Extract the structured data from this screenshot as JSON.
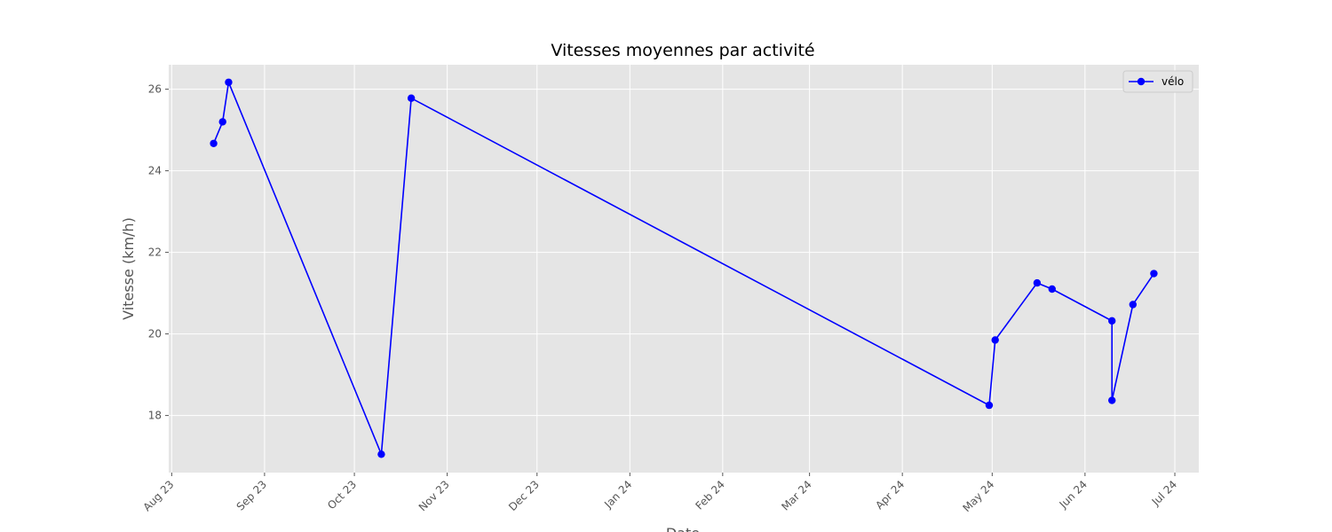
{
  "chart_data": {
    "type": "line",
    "title": "Vitesses moyennes par activité",
    "xlabel": "Date",
    "ylabel": "Vitesse (km/h)",
    "x": [
      "2023-08-15",
      "2023-08-18",
      "2023-08-20",
      "2023-10-10",
      "2023-10-20",
      "2024-04-30",
      "2024-05-02",
      "2024-05-16",
      "2024-05-21",
      "2024-06-10",
      "2024-06-10",
      "2024-06-17",
      "2024-06-24"
    ],
    "series": [
      {
        "name": "vélo",
        "color": "#0000ff",
        "values": [
          24.67,
          25.2,
          26.17,
          17.05,
          25.78,
          18.25,
          19.85,
          21.25,
          21.1,
          20.32,
          18.37,
          20.72,
          21.48
        ]
      }
    ],
    "xlim": [
      "2023-07-31",
      "2024-07-09"
    ],
    "xticks": [
      {
        "value": "2023-08-01",
        "label": "Aug 23"
      },
      {
        "value": "2023-09-01",
        "label": "Sep 23"
      },
      {
        "value": "2023-10-01",
        "label": "Oct 23"
      },
      {
        "value": "2023-11-01",
        "label": "Nov 23"
      },
      {
        "value": "2023-12-01",
        "label": "Dec 23"
      },
      {
        "value": "2024-01-01",
        "label": "Jan 24"
      },
      {
        "value": "2024-02-01",
        "label": "Feb 24"
      },
      {
        "value": "2024-03-01",
        "label": "Mar 24"
      },
      {
        "value": "2024-04-01",
        "label": "Apr 24"
      },
      {
        "value": "2024-05-01",
        "label": "May 24"
      },
      {
        "value": "2024-06-01",
        "label": "Jun 24"
      },
      {
        "value": "2024-07-01",
        "label": "Jul 24"
      }
    ],
    "ylim": [
      16.6,
      26.6
    ],
    "yticks": [
      18,
      20,
      22,
      24,
      26
    ],
    "grid": true,
    "legend": "upper right"
  }
}
